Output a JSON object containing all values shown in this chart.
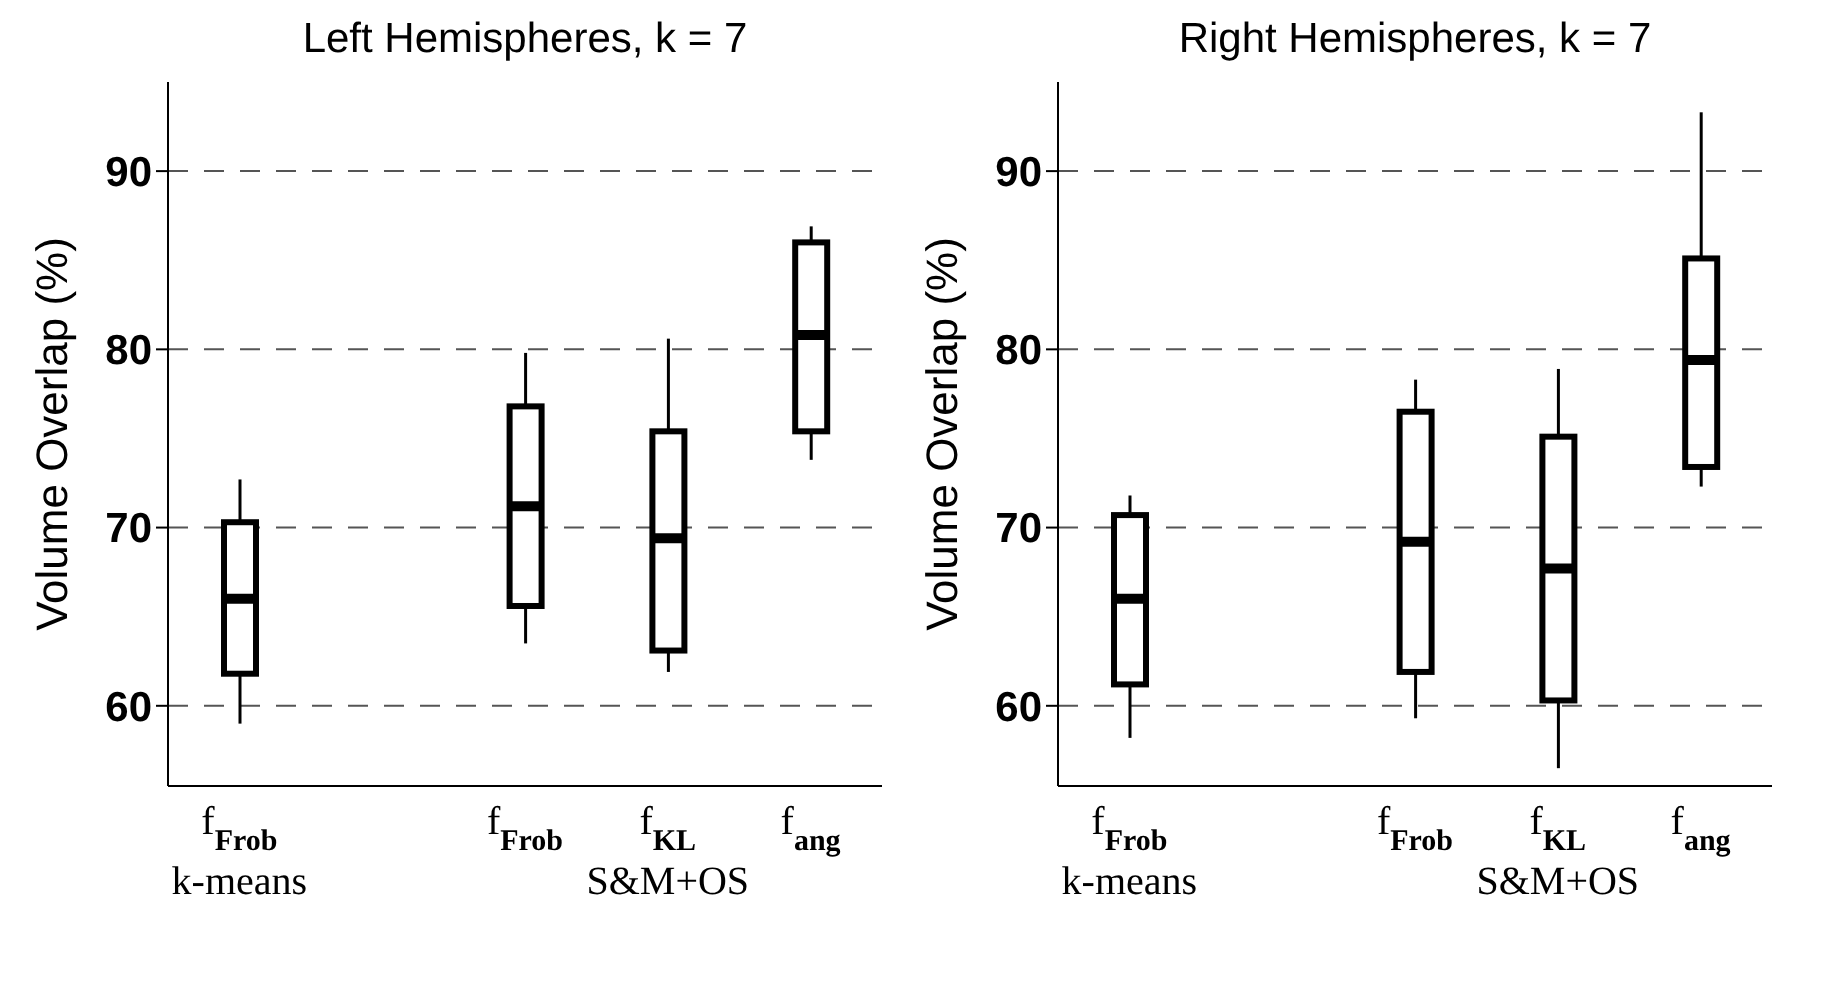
{
  "chart_data": [
    {
      "type": "box",
      "title": "Left Hemispheres, k = 7",
      "ylabel": "Volume Overlap (%)",
      "categories": [
        "f$_{Frob}$",
        null,
        "f$_{Frob}$",
        "f$_{KL}$",
        "f$_{ang}$"
      ],
      "ylim": [
        55.5,
        95
      ],
      "yticks": [
        60,
        70,
        80,
        90
      ],
      "grid": "y",
      "color": "#000000",
      "annotations": [
        "k-means",
        "S&M+OS"
      ],
      "boxes": [
        {
          "low": 59.0,
          "q1": 61.8,
          "median": 66.0,
          "q3": 70.3,
          "high": 72.7
        },
        null,
        {
          "low": 63.5,
          "q1": 65.6,
          "median": 71.2,
          "q3": 76.8,
          "high": 79.8
        },
        {
          "low": 61.9,
          "q1": 63.1,
          "median": 69.4,
          "q3": 75.4,
          "high": 80.6
        },
        {
          "low": 73.8,
          "q1": 75.4,
          "median": 80.8,
          "q3": 86.0,
          "high": 86.9
        }
      ]
    },
    {
      "type": "box",
      "title": "Right Hemispheres, k = 7",
      "ylabel": "Volume Overlap (%)",
      "categories": [
        "f$_{Frob}$",
        null,
        "f$_{Frob}$",
        "f$_{KL}$",
        "f$_{ang}$"
      ],
      "ylim": [
        55.5,
        95
      ],
      "yticks": [
        60,
        70,
        80,
        90
      ],
      "grid": "y",
      "color": "#000000",
      "annotations": [
        "k-means",
        "S&M+OS"
      ],
      "boxes": [
        {
          "low": 58.2,
          "q1": 61.2,
          "median": 66.0,
          "q3": 70.7,
          "high": 71.8
        },
        null,
        {
          "low": 59.3,
          "q1": 61.9,
          "median": 69.2,
          "q3": 76.5,
          "high": 78.3
        },
        {
          "low": 56.5,
          "q1": 60.3,
          "median": 67.7,
          "q3": 75.1,
          "high": 78.9
        },
        {
          "low": 72.3,
          "q1": 73.4,
          "median": 79.4,
          "q3": 85.1,
          "high": 93.3
        }
      ]
    }
  ]
}
